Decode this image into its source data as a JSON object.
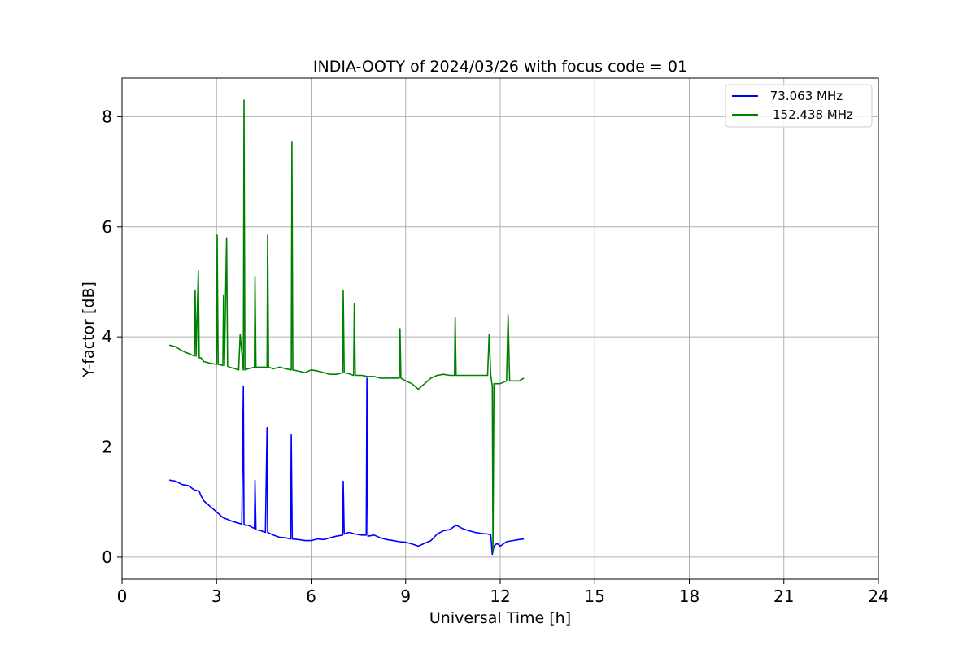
{
  "chart_data": {
    "type": "line",
    "title": "INDIA-OOTY of 2024/03/26 with focus code = 01",
    "xlabel": "Universal Time [h]",
    "ylabel": "Y-factor [dB]",
    "xlim": [
      0,
      24
    ],
    "ylim": [
      -0.4,
      8.7
    ],
    "xticks": [
      0,
      3,
      6,
      9,
      12,
      15,
      18,
      21,
      24
    ],
    "yticks": [
      0,
      2,
      4,
      6,
      8
    ],
    "grid": true,
    "legend_position": "upper right",
    "series": [
      {
        "name": " 73.063 MHz",
        "color": "#0000ff",
        "x": [
          1.5,
          1.7,
          1.9,
          2.1,
          2.3,
          2.45,
          2.5,
          2.6,
          2.8,
          3.0,
          3.2,
          3.5,
          3.8,
          3.85,
          3.87,
          3.9,
          4.0,
          4.2,
          4.22,
          4.25,
          4.4,
          4.55,
          4.6,
          4.62,
          4.65,
          4.8,
          5.0,
          5.2,
          5.35,
          5.37,
          5.4,
          5.6,
          5.8,
          6.0,
          6.2,
          6.4,
          6.6,
          6.8,
          7.0,
          7.02,
          7.05,
          7.2,
          7.4,
          7.6,
          7.75,
          7.77,
          7.8,
          8.0,
          8.2,
          8.4,
          8.6,
          8.8,
          9.0,
          9.2,
          9.4,
          9.6,
          9.8,
          10.0,
          10.2,
          10.4,
          10.6,
          10.8,
          11.0,
          11.2,
          11.4,
          11.6,
          11.7,
          11.75,
          11.8,
          11.9,
          12.0,
          12.2,
          12.4,
          12.6,
          12.75
        ],
        "y": [
          1.4,
          1.38,
          1.32,
          1.3,
          1.22,
          1.2,
          1.12,
          1.02,
          0.92,
          0.82,
          0.72,
          0.65,
          0.6,
          3.1,
          0.6,
          0.58,
          0.58,
          0.52,
          1.4,
          0.5,
          0.48,
          0.45,
          2.35,
          0.45,
          0.44,
          0.4,
          0.36,
          0.35,
          0.33,
          2.22,
          0.33,
          0.32,
          0.3,
          0.3,
          0.33,
          0.32,
          0.35,
          0.38,
          0.4,
          1.38,
          0.42,
          0.45,
          0.42,
          0.4,
          0.4,
          3.25,
          0.38,
          0.4,
          0.35,
          0.32,
          0.3,
          0.28,
          0.27,
          0.24,
          0.2,
          0.25,
          0.3,
          0.42,
          0.48,
          0.5,
          0.58,
          0.52,
          0.48,
          0.45,
          0.43,
          0.42,
          0.4,
          0.05,
          0.2,
          0.25,
          0.2,
          0.28,
          0.3,
          0.32,
          0.33
        ]
      },
      {
        "name": "152.438 MHz",
        "color": "#008000",
        "x": [
          1.5,
          1.7,
          1.9,
          2.1,
          2.3,
          2.32,
          2.35,
          2.42,
          2.45,
          2.5,
          2.6,
          2.8,
          3.0,
          3.02,
          3.05,
          3.2,
          3.22,
          3.25,
          3.32,
          3.35,
          3.4,
          3.6,
          3.7,
          3.75,
          3.85,
          3.87,
          3.9,
          4.0,
          4.2,
          4.22,
          4.25,
          4.4,
          4.6,
          4.62,
          4.65,
          4.8,
          5.0,
          5.2,
          5.37,
          5.39,
          5.42,
          5.6,
          5.8,
          6.0,
          6.2,
          6.4,
          6.6,
          6.8,
          7.0,
          7.02,
          7.05,
          7.2,
          7.35,
          7.37,
          7.4,
          7.6,
          7.8,
          8.0,
          8.2,
          8.4,
          8.6,
          8.8,
          8.82,
          8.85,
          9.0,
          9.2,
          9.4,
          9.6,
          9.8,
          10.0,
          10.2,
          10.4,
          10.55,
          10.57,
          10.6,
          10.8,
          11.0,
          11.2,
          11.4,
          11.6,
          11.65,
          11.7,
          11.75,
          11.77,
          11.8,
          11.85,
          12.0,
          12.2,
          12.25,
          12.3,
          12.4,
          12.6,
          12.75
        ],
        "y": [
          3.85,
          3.82,
          3.75,
          3.7,
          3.65,
          4.85,
          3.65,
          5.2,
          3.62,
          3.62,
          3.55,
          3.52,
          3.5,
          5.85,
          3.5,
          3.48,
          4.75,
          3.48,
          5.8,
          3.47,
          3.45,
          3.42,
          3.4,
          4.05,
          3.4,
          8.3,
          3.4,
          3.42,
          3.45,
          5.1,
          3.45,
          3.45,
          3.45,
          5.85,
          3.45,
          3.42,
          3.45,
          3.42,
          3.4,
          7.55,
          3.4,
          3.38,
          3.35,
          3.4,
          3.38,
          3.35,
          3.32,
          3.32,
          3.35,
          4.85,
          3.35,
          3.33,
          3.3,
          4.6,
          3.3,
          3.3,
          3.28,
          3.28,
          3.25,
          3.25,
          3.25,
          3.25,
          4.15,
          3.25,
          3.2,
          3.15,
          3.05,
          3.15,
          3.25,
          3.3,
          3.32,
          3.3,
          3.3,
          4.35,
          3.3,
          3.3,
          3.3,
          3.3,
          3.3,
          3.3,
          4.05,
          3.3,
          3.1,
          0.1,
          3.15,
          3.15,
          3.15,
          3.2,
          4.4,
          3.2,
          3.2,
          3.2,
          3.25
        ]
      }
    ]
  }
}
